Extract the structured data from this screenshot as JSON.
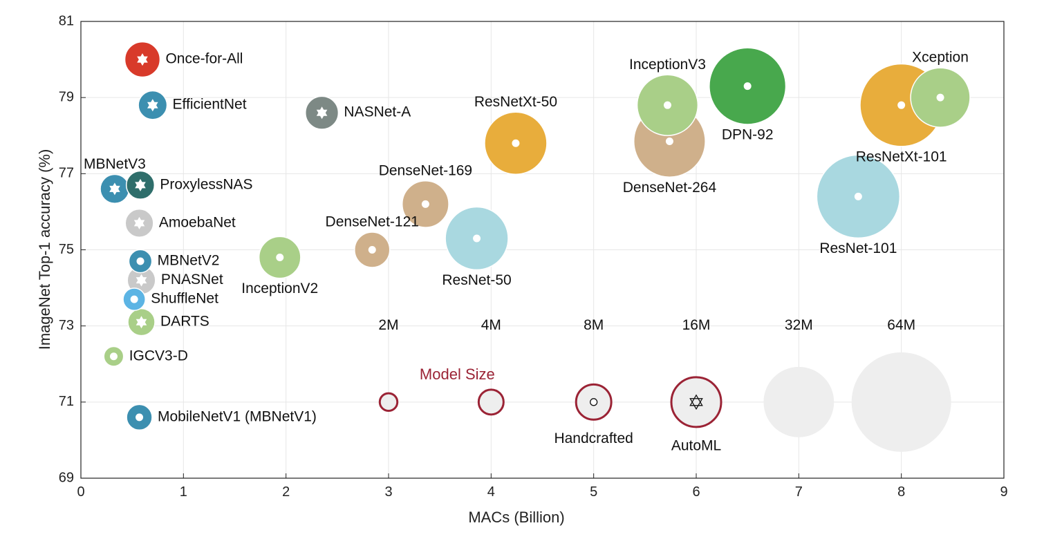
{
  "chart_data": {
    "type": "scatter",
    "xlabel": "MACs (Billion)",
    "ylabel": "ImageNet Top-1 accuracy (%)",
    "xlim": [
      0,
      9
    ],
    "ylim": [
      69,
      81
    ],
    "xticks": [
      0,
      1,
      2,
      3,
      4,
      5,
      6,
      7,
      8,
      9
    ],
    "yticks": [
      69,
      71,
      73,
      75,
      77,
      79,
      81
    ],
    "grid": true,
    "colors": {
      "red": "#d83a2a",
      "blue": "#3c8fb0",
      "teal": "#2f6e6b",
      "gray": "#c9c9c9",
      "darkgray": "#7d8985",
      "lightblue": "#5cb4e4",
      "lightgreen": "#a9cf88",
      "tan": "#cfb08b",
      "orange": "#e8ad3c",
      "paleblue": "#a9d8e0",
      "green": "#48a84d",
      "legend_outline": "#9b2335",
      "legend_fill": "#eeeeee"
    },
    "points": [
      {
        "label": "Once-for-All",
        "x": 0.6,
        "y": 80.0,
        "size_m": 8,
        "color": "red",
        "marker": "star",
        "label_pos": "right"
      },
      {
        "label": "EfficientNet",
        "x": 0.7,
        "y": 78.8,
        "size_m": 5.3,
        "color": "blue",
        "marker": "star",
        "label_pos": "right"
      },
      {
        "label": "NASNet-A",
        "x": 2.35,
        "y": 78.6,
        "size_m": 7,
        "color": "darkgray",
        "marker": "star",
        "label_pos": "right"
      },
      {
        "label": "MBNetV3",
        "x": 0.33,
        "y": 76.6,
        "size_m": 5.4,
        "color": "blue",
        "marker": "star",
        "label_pos": "top"
      },
      {
        "label": "ProxylessNAS",
        "x": 0.58,
        "y": 76.7,
        "size_m": 5.1,
        "color": "teal",
        "marker": "star",
        "label_pos": "right"
      },
      {
        "label": "AmoebaNet",
        "x": 0.57,
        "y": 75.7,
        "size_m": 5.1,
        "color": "gray",
        "marker": "star",
        "label_pos": "right"
      },
      {
        "label": "MBNetV2",
        "x": 0.58,
        "y": 74.7,
        "size_m": 3.4,
        "color": "blue",
        "marker": "circle",
        "label_pos": "right"
      },
      {
        "label": "PNASNet",
        "x": 0.59,
        "y": 74.2,
        "size_m": 5.1,
        "color": "gray",
        "marker": "star",
        "label_pos": "right"
      },
      {
        "label": "ShuffleNet",
        "x": 0.52,
        "y": 73.7,
        "size_m": 3.2,
        "color": "lightblue",
        "marker": "circle",
        "label_pos": "right"
      },
      {
        "label": "DARTS",
        "x": 0.59,
        "y": 73.1,
        "size_m": 4.7,
        "color": "lightgreen",
        "marker": "star",
        "label_pos": "right"
      },
      {
        "label": "IGCV3-D",
        "x": 0.32,
        "y": 72.2,
        "size_m": 2.5,
        "color": "lightgreen",
        "marker": "circle",
        "label_pos": "right"
      },
      {
        "label": "MobileNetV1 (MBNetV1)",
        "x": 0.57,
        "y": 70.6,
        "size_m": 4.2,
        "color": "blue",
        "marker": "circle",
        "label_pos": "right"
      },
      {
        "label": "InceptionV2",
        "x": 1.94,
        "y": 74.8,
        "size_m": 11.2,
        "color": "lightgreen",
        "marker": "circle",
        "label_pos": "bottom"
      },
      {
        "label": "DenseNet-121",
        "x": 2.84,
        "y": 75.0,
        "size_m": 8,
        "color": "tan",
        "marker": "circle",
        "label_pos": "top"
      },
      {
        "label": "DenseNet-169",
        "x": 3.36,
        "y": 76.2,
        "size_m": 14,
        "color": "tan",
        "marker": "circle",
        "label_pos": "top"
      },
      {
        "label": "ResNet-50",
        "x": 3.86,
        "y": 75.3,
        "size_m": 25.5,
        "color": "paleblue",
        "marker": "circle",
        "label_pos": "bottom"
      },
      {
        "label": "ResNetXt-50",
        "x": 4.24,
        "y": 77.8,
        "size_m": 25,
        "color": "orange",
        "marker": "circle",
        "label_pos": "top"
      },
      {
        "label": "DenseNet-264",
        "x": 5.74,
        "y": 77.85,
        "size_m": 33,
        "color": "tan",
        "marker": "circle",
        "label_pos": "bottom"
      },
      {
        "label": "InceptionV3",
        "x": 5.72,
        "y": 78.8,
        "size_m": 23.8,
        "color": "lightgreen",
        "marker": "circle",
        "label_pos": "top"
      },
      {
        "label": "DPN-92",
        "x": 6.5,
        "y": 79.3,
        "size_m": 37.8,
        "color": "green",
        "marker": "circle",
        "label_pos": "bottom"
      },
      {
        "label": "ResNet-101",
        "x": 7.58,
        "y": 76.4,
        "size_m": 44.5,
        "color": "paleblue",
        "marker": "circle",
        "label_pos": "bottom"
      },
      {
        "label": "ResNetXt-101",
        "x": 8.0,
        "y": 78.8,
        "size_m": 44,
        "color": "orange",
        "marker": "circle",
        "label_pos": "bottom"
      },
      {
        "label": "Xception",
        "x": 8.38,
        "y": 79.0,
        "size_m": 22.8,
        "color": "lightgreen",
        "marker": "circle",
        "label_pos": "top"
      }
    ],
    "legend": {
      "title": "Model Size",
      "y": 71,
      "sizes": [
        {
          "label": "2M",
          "x": 3,
          "size_m": 2
        },
        {
          "label": "4M",
          "x": 4,
          "size_m": 4
        },
        {
          "label": "8M",
          "x": 5,
          "size_m": 8
        },
        {
          "label": "16M",
          "x": 6,
          "size_m": 16
        },
        {
          "label": "32M",
          "x": 7,
          "size_m": 32
        },
        {
          "label": "64M",
          "x": 8,
          "size_m": 64
        }
      ],
      "markers": [
        {
          "label": "Handcrafted",
          "x": 5,
          "marker": "circle"
        },
        {
          "label": "AutoML",
          "x": 6,
          "marker": "star"
        }
      ]
    }
  }
}
